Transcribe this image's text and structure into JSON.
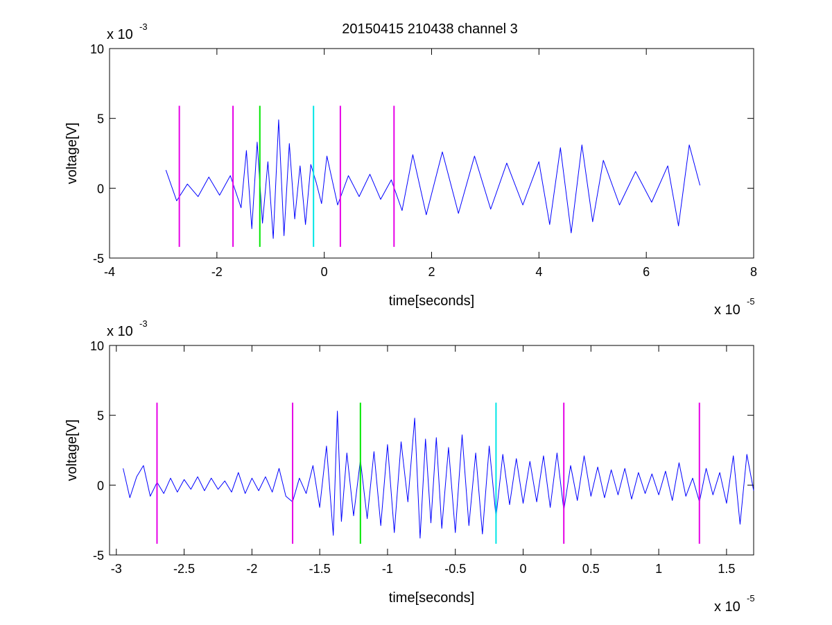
{
  "figure": {
    "title": "20150415 210438 channel 3",
    "colors": {
      "trace": "#0000ff",
      "background": "#ffffff",
      "axes": "#000000"
    }
  },
  "chart_data": [
    {
      "type": "line",
      "title": "20150415 210438 channel 3",
      "xlabel": "time[seconds]",
      "ylabel": "voltage[V]",
      "x_multiplier_label": "x 10",
      "x_multiplier_exponent": "-5",
      "y_multiplier_label": "x 10",
      "y_multiplier_exponent": "-3",
      "xlim": [
        -4,
        8
      ],
      "ylim": [
        -5,
        10
      ],
      "xticks": [
        -4,
        -2,
        0,
        2,
        4,
        6,
        8
      ],
      "xtick_labels": [
        "-4",
        "-2",
        "0",
        "2",
        "4",
        "6",
        "8"
      ],
      "yticks": [
        -5,
        0,
        5,
        10
      ],
      "ytick_labels": [
        "-5",
        "0",
        "5",
        "10"
      ],
      "grid": false,
      "series": [
        {
          "color": "#0000ff",
          "x": [
            -2.95,
            -2.75,
            -2.55,
            -2.35,
            -2.15,
            -1.95,
            -1.75,
            -1.55,
            -1.45,
            -1.35,
            -1.25,
            -1.15,
            -1.05,
            -0.95,
            -0.85,
            -0.75,
            -0.65,
            -0.55,
            -0.45,
            -0.35,
            -0.25,
            -0.15,
            -0.05,
            0.05,
            0.25,
            0.45,
            0.65,
            0.85,
            1.05,
            1.25,
            1.45,
            1.65,
            1.9,
            2.2,
            2.5,
            2.8,
            3.1,
            3.4,
            3.7,
            4.0,
            4.2,
            4.4,
            4.6,
            4.8,
            5.0,
            5.2,
            5.5,
            5.8,
            6.1,
            6.4,
            6.6,
            6.8,
            7.0
          ],
          "y": [
            1.3,
            -0.9,
            0.3,
            -0.6,
            0.8,
            -0.5,
            0.9,
            -1.4,
            2.7,
            -2.9,
            3.3,
            -2.5,
            1.9,
            -3.6,
            4.9,
            -3.4,
            3.2,
            -2.2,
            1.6,
            -2.6,
            1.7,
            0.4,
            -1.1,
            2.3,
            -1.2,
            0.9,
            -0.6,
            1.0,
            -0.8,
            0.6,
            -1.6,
            2.4,
            -1.9,
            2.6,
            -1.8,
            2.3,
            -1.5,
            1.8,
            -1.2,
            1.9,
            -2.6,
            2.9,
            -3.2,
            3.1,
            -2.4,
            2.0,
            -1.2,
            1.2,
            -1.0,
            1.6,
            -2.7,
            3.1,
            0.2
          ]
        }
      ],
      "vertical_markers": [
        {
          "x": -2.7,
          "ymin": -4.2,
          "ymax": 5.9,
          "color": "#e600e6"
        },
        {
          "x": -1.7,
          "ymin": -4.2,
          "ymax": 5.9,
          "color": "#e600e6"
        },
        {
          "x": -1.2,
          "ymin": -4.2,
          "ymax": 5.9,
          "color": "#00e600"
        },
        {
          "x": -0.2,
          "ymin": -4.2,
          "ymax": 5.9,
          "color": "#00e6e6"
        },
        {
          "x": 0.3,
          "ymin": -4.2,
          "ymax": 5.9,
          "color": "#e600e6"
        },
        {
          "x": 1.3,
          "ymin": -4.2,
          "ymax": 5.9,
          "color": "#e600e6"
        }
      ]
    },
    {
      "type": "line",
      "title": "",
      "xlabel": "time[seconds]",
      "ylabel": "voltage[V]",
      "x_multiplier_label": "x 10",
      "x_multiplier_exponent": "-5",
      "y_multiplier_label": "x 10",
      "y_multiplier_exponent": "-3",
      "xlim": [
        -3.05,
        1.7
      ],
      "ylim": [
        -5,
        10
      ],
      "xticks": [
        -3,
        -2.5,
        -2,
        -1.5,
        -1,
        -0.5,
        0,
        0.5,
        1,
        1.5
      ],
      "xtick_labels": [
        "-3",
        "-2.5",
        "-2",
        "-1.5",
        "-1",
        "-0.5",
        "0",
        "0.5",
        "1",
        "1.5"
      ],
      "yticks": [
        -5,
        0,
        5,
        10
      ],
      "ytick_labels": [
        "-5",
        "0",
        "5",
        "10"
      ],
      "grid": false,
      "series": [
        {
          "color": "#0000ff",
          "x": [
            -2.95,
            -2.9,
            -2.85,
            -2.8,
            -2.75,
            -2.7,
            -2.65,
            -2.6,
            -2.55,
            -2.5,
            -2.45,
            -2.4,
            -2.35,
            -2.3,
            -2.25,
            -2.2,
            -2.15,
            -2.1,
            -2.05,
            -2.0,
            -1.95,
            -1.9,
            -1.85,
            -1.8,
            -1.75,
            -1.7,
            -1.65,
            -1.6,
            -1.55,
            -1.5,
            -1.45,
            -1.4,
            -1.37,
            -1.34,
            -1.3,
            -1.25,
            -1.2,
            -1.15,
            -1.1,
            -1.05,
            -1.0,
            -0.95,
            -0.9,
            -0.85,
            -0.8,
            -0.76,
            -0.72,
            -0.68,
            -0.64,
            -0.6,
            -0.55,
            -0.5,
            -0.45,
            -0.4,
            -0.35,
            -0.3,
            -0.25,
            -0.2,
            -0.15,
            -0.1,
            -0.05,
            0.0,
            0.05,
            0.1,
            0.15,
            0.2,
            0.25,
            0.3,
            0.35,
            0.4,
            0.45,
            0.5,
            0.55,
            0.6,
            0.65,
            0.7,
            0.75,
            0.8,
            0.85,
            0.9,
            0.95,
            1.0,
            1.05,
            1.1,
            1.15,
            1.2,
            1.25,
            1.3,
            1.35,
            1.4,
            1.45,
            1.5,
            1.55,
            1.6,
            1.65,
            1.7
          ],
          "y": [
            1.2,
            -0.9,
            0.6,
            1.4,
            -0.8,
            0.2,
            -0.6,
            0.5,
            -0.5,
            0.4,
            -0.3,
            0.6,
            -0.4,
            0.5,
            -0.3,
            0.3,
            -0.5,
            0.9,
            -0.6,
            0.5,
            -0.4,
            0.6,
            -0.5,
            1.2,
            -0.8,
            -1.2,
            0.5,
            -0.6,
            1.4,
            -1.6,
            2.8,
            -3.6,
            5.3,
            -2.6,
            2.3,
            -2.2,
            1.8,
            -2.4,
            2.4,
            -2.9,
            2.9,
            -3.4,
            3.1,
            -1.2,
            4.8,
            -3.8,
            3.3,
            -2.7,
            3.4,
            -3.1,
            2.7,
            -3.4,
            3.6,
            -2.9,
            2.3,
            -3.5,
            2.8,
            -2.3,
            2.2,
            -1.4,
            1.9,
            -1.3,
            1.7,
            -1.2,
            2.1,
            -1.6,
            2.3,
            -1.8,
            1.4,
            -1.1,
            2.1,
            -0.8,
            1.3,
            -0.9,
            1.1,
            -0.7,
            1.2,
            -1.0,
            0.9,
            -0.6,
            0.8,
            -0.7,
            1.0,
            -1.1,
            1.6,
            -0.8,
            0.5,
            -1.2,
            1.2,
            -0.7,
            0.9,
            -1.3,
            2.1,
            -2.8,
            2.2,
            -0.4
          ]
        }
      ],
      "vertical_markers": [
        {
          "x": -2.7,
          "ymin": -4.2,
          "ymax": 5.9,
          "color": "#e600e6"
        },
        {
          "x": -1.7,
          "ymin": -4.2,
          "ymax": 5.9,
          "color": "#e600e6"
        },
        {
          "x": -1.2,
          "ymin": -4.2,
          "ymax": 5.9,
          "color": "#00e600"
        },
        {
          "x": -0.2,
          "ymin": -4.2,
          "ymax": 5.9,
          "color": "#00e6e6"
        },
        {
          "x": 0.3,
          "ymin": -4.2,
          "ymax": 5.9,
          "color": "#e600e6"
        },
        {
          "x": 1.3,
          "ymin": -4.2,
          "ymax": 5.9,
          "color": "#e600e6"
        }
      ]
    }
  ]
}
